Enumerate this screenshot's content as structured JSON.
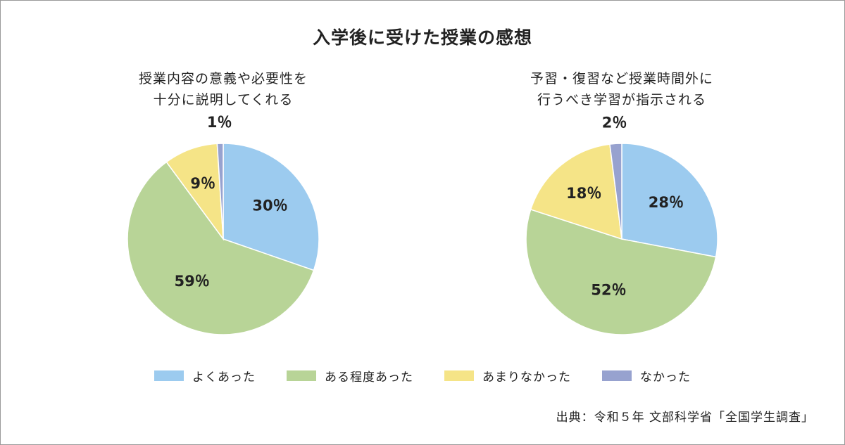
{
  "title": "入学後に受けた授業の感想",
  "colors": {
    "よくあった": "#9ccbef",
    "ある程度あった": "#b8d497",
    "あまりなかった": "#f5e487",
    "なかった": "#97a2cf"
  },
  "legend": [
    "よくあった",
    "ある程度あった",
    "あまりなかった",
    "なかった"
  ],
  "source": "出典：令和５年 文部科学省「全国学生調査」",
  "chart_data": [
    {
      "type": "pie",
      "title_lines": [
        "授業内容の意義や必要性を",
        "十分に説明してくれる"
      ],
      "categories": [
        "よくあった",
        "ある程度あった",
        "あまりなかった",
        "なかった"
      ],
      "values": [
        30,
        59,
        9,
        1
      ],
      "labels": [
        "30％",
        "59％",
        "9％",
        "1％"
      ]
    },
    {
      "type": "pie",
      "title_lines": [
        "予習・復習など授業時間外に",
        "行うべき学習が指示される"
      ],
      "categories": [
        "よくあった",
        "ある程度あった",
        "あまりなかった",
        "なかった"
      ],
      "values": [
        28,
        52,
        18,
        2
      ],
      "labels": [
        "28％",
        "52％",
        "18％",
        "2％"
      ]
    }
  ]
}
